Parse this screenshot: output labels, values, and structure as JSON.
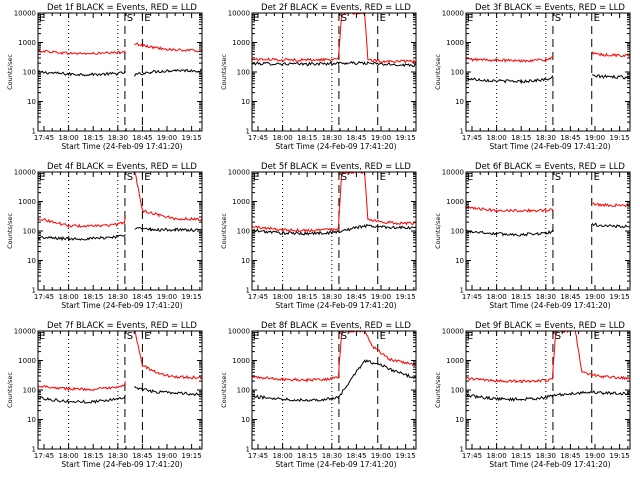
{
  "figure": {
    "start_time_label": "Start Time (24-Feb-09 17:41:20)",
    "y_axis_label": "Counts/sec",
    "x_tick_labels": [
      "17:45",
      "18:00",
      "18:15",
      "18:30",
      "18:45",
      "19:00",
      "19:15"
    ],
    "y_tick_labels": [
      "1",
      "10",
      "100",
      "1000",
      "10000"
    ]
  },
  "colors": {
    "events": "#000000",
    "lld": "#ff0000",
    "axis": "#000000",
    "background": "#ffffff"
  },
  "chart_data": [
    {
      "type": "line",
      "title": "Det 1f BLACK = Events, RED = LLD",
      "xlabel": "Start Time (24-Feb-09 17:41:20)",
      "ylabel": "Counts/sec",
      "x_unit": "UT time (HH:MM)",
      "xlim": [
        "17:41:20",
        "19:21:20"
      ],
      "ylim": [
        1,
        10000
      ],
      "y_scale": "log",
      "markers": [
        {
          "label": "S",
          "time": "18:34:20"
        },
        {
          "label": "E",
          "time": "18:45:00"
        }
      ],
      "dotted_lines": [
        "18:00",
        "18:30"
      ],
      "dashed_lines": [
        "18:34:20",
        "18:45:00"
      ],
      "gap": [
        "18:35:00",
        "18:40:30"
      ],
      "series": [
        {
          "name": "BLACK = Events",
          "color": "#000000",
          "x": [
            "17:41:20",
            "18:00",
            "18:15",
            "18:30",
            "18:34:00",
            "18:40:30",
            "18:50",
            "19:05",
            "19:21:20"
          ],
          "values": [
            100,
            85,
            82,
            88,
            95,
            80,
            100,
            115,
            110
          ]
        },
        {
          "name": "RED = LLD",
          "color": "#ff0000",
          "x": [
            "17:41:20",
            "18:00",
            "18:15",
            "18:30",
            "18:34:00",
            "18:40:30",
            "18:50",
            "19:05",
            "19:21:20"
          ],
          "values": [
            530,
            430,
            420,
            450,
            500,
            900,
            700,
            560,
            520
          ]
        }
      ]
    },
    {
      "type": "line",
      "title": "Det 2f BLACK = Events, RED = LLD",
      "xlabel": "Start Time (24-Feb-09 17:41:20)",
      "ylabel": "Counts/sec",
      "x_unit": "UT time (HH:MM)",
      "xlim": [
        "17:41:20",
        "19:21:20"
      ],
      "ylim": [
        1,
        10000
      ],
      "y_scale": "log",
      "markers": [
        {
          "label": "S",
          "time": "18:34:20"
        },
        {
          "label": "E",
          "time": "18:58:00"
        }
      ],
      "dotted_lines": [
        "18:00",
        "18:30"
      ],
      "dashed_lines": [
        "18:34:20",
        "18:58:00"
      ],
      "gap": [],
      "series": [
        {
          "name": "BLACK = Events",
          "color": "#000000",
          "x": [
            "17:41:20",
            "18:00",
            "18:15",
            "18:30",
            "18:34:00",
            "18:50",
            "19:05",
            "19:21:20"
          ],
          "values": [
            195,
            190,
            185,
            195,
            200,
            200,
            180,
            170
          ]
        },
        {
          "name": "RED = LLD",
          "color": "#ff0000",
          "x": [
            "17:41:20",
            "18:00",
            "18:15",
            "18:30",
            "18:34:00",
            "18:36",
            "18:50",
            "18:52",
            "19:05",
            "19:21:20"
          ],
          "values": [
            270,
            260,
            255,
            265,
            300,
            10000,
            10000,
            250,
            230,
            225
          ]
        }
      ]
    },
    {
      "type": "line",
      "title": "Det 3f BLACK = Events, RED = LLD",
      "xlabel": "Start Time (24-Feb-09 17:41:20)",
      "ylabel": "Counts/sec",
      "x_unit": "UT time (HH:MM)",
      "xlim": [
        "17:41:20",
        "19:21:20"
      ],
      "ylim": [
        1,
        10000
      ],
      "y_scale": "log",
      "markers": [
        {
          "label": "S",
          "time": "18:34:20"
        },
        {
          "label": "E",
          "time": "18:58:00"
        }
      ],
      "dotted_lines": [
        "18:00",
        "18:30"
      ],
      "dashed_lines": [
        "18:34:20",
        "18:58:00"
      ],
      "gap": [
        "18:35:00",
        "18:58:30"
      ],
      "series": [
        {
          "name": "BLACK = Events",
          "color": "#000000",
          "x": [
            "17:41:20",
            "18:00",
            "18:15",
            "18:30",
            "18:34:00",
            "18:58:30",
            "19:05",
            "19:21:20"
          ],
          "values": [
            60,
            50,
            48,
            55,
            65,
            75,
            70,
            65
          ]
        },
        {
          "name": "RED = LLD",
          "color": "#ff0000",
          "x": [
            "17:41:20",
            "18:00",
            "18:15",
            "18:30",
            "18:34:00",
            "18:58:30",
            "19:05",
            "19:21:20"
          ],
          "values": [
            270,
            250,
            240,
            260,
            300,
            420,
            380,
            360
          ]
        }
      ]
    },
    {
      "type": "line",
      "title": "Det 4f BLACK = Events, RED = LLD",
      "xlabel": "Start Time (24-Feb-09 17:41:20)",
      "ylabel": "Counts/sec",
      "x_unit": "UT time (HH:MM)",
      "xlim": [
        "17:41:20",
        "19:21:20"
      ],
      "ylim": [
        1,
        10000
      ],
      "y_scale": "log",
      "markers": [
        {
          "label": "S",
          "time": "18:34:20"
        },
        {
          "label": "E",
          "time": "18:45:00"
        }
      ],
      "dotted_lines": [
        "18:00",
        "18:30"
      ],
      "dashed_lines": [
        "18:34:20",
        "18:45:00"
      ],
      "gap": [
        "18:35:00",
        "18:40:30"
      ],
      "series": [
        {
          "name": "BLACK = Events",
          "color": "#000000",
          "x": [
            "17:41:20",
            "18:00",
            "18:15",
            "18:30",
            "18:34:00",
            "18:40:30",
            "18:50",
            "19:05",
            "19:21:20"
          ],
          "values": [
            60,
            55,
            55,
            65,
            75,
            130,
            110,
            110,
            105
          ]
        },
        {
          "name": "RED = LLD",
          "color": "#ff0000",
          "x": [
            "17:41:20",
            "18:00",
            "18:15",
            "18:30",
            "18:34:00",
            "18:40:30",
            "18:45",
            "18:55",
            "19:05",
            "19:21:20"
          ],
          "values": [
            270,
            150,
            145,
            165,
            200,
            10000,
            500,
            350,
            260,
            250
          ]
        }
      ]
    },
    {
      "type": "line",
      "title": "Det 5f BLACK = Events, RED = LLD",
      "xlabel": "Start Time (24-Feb-09 17:41:20)",
      "ylabel": "Counts/sec",
      "x_unit": "UT time (HH:MM)",
      "xlim": [
        "17:41:20",
        "19:21:20"
      ],
      "ylim": [
        1,
        10000
      ],
      "y_scale": "log",
      "markers": [
        {
          "label": "S",
          "time": "18:34:20"
        },
        {
          "label": "E",
          "time": "18:58:00"
        }
      ],
      "dotted_lines": [
        "18:00",
        "18:30"
      ],
      "dashed_lines": [
        "18:34:20",
        "18:58:00"
      ],
      "gap": [],
      "series": [
        {
          "name": "BLACK = Events",
          "color": "#000000",
          "x": [
            "17:41:20",
            "18:00",
            "18:15",
            "18:30",
            "18:34:00",
            "18:50",
            "19:05",
            "19:21:20"
          ],
          "values": [
            105,
            85,
            82,
            88,
            95,
            150,
            135,
            125
          ]
        },
        {
          "name": "RED = LLD",
          "color": "#ff0000",
          "x": [
            "17:41:20",
            "18:00",
            "18:15",
            "18:30",
            "18:34:00",
            "18:36",
            "18:50",
            "18:52",
            "19:05",
            "19:21:20"
          ],
          "values": [
            140,
            110,
            105,
            115,
            125,
            10000,
            10000,
            230,
            190,
            180
          ]
        }
      ]
    },
    {
      "type": "line",
      "title": "Det 6f BLACK = Events, RED = LLD",
      "xlabel": "Start Time (24-Feb-09 17:41:20)",
      "ylabel": "Counts/sec",
      "x_unit": "UT time (HH:MM)",
      "xlim": [
        "17:41:20",
        "19:21:20"
      ],
      "ylim": [
        1,
        10000
      ],
      "y_scale": "log",
      "markers": [
        {
          "label": "S",
          "time": "18:34:20"
        },
        {
          "label": "E",
          "time": "18:58:00"
        }
      ],
      "dotted_lines": [
        "18:00",
        "18:30"
      ],
      "dashed_lines": [
        "18:34:20",
        "18:58:00"
      ],
      "gap": [
        "18:35:00",
        "18:58:30"
      ],
      "series": [
        {
          "name": "BLACK = Events",
          "color": "#000000",
          "x": [
            "17:41:20",
            "18:00",
            "18:15",
            "18:30",
            "18:34:00",
            "18:58:30",
            "19:05",
            "19:21:20"
          ],
          "values": [
            100,
            80,
            75,
            85,
            95,
            170,
            150,
            140
          ]
        },
        {
          "name": "RED = LLD",
          "color": "#ff0000",
          "x": [
            "17:41:20",
            "18:00",
            "18:15",
            "18:30",
            "18:34:00",
            "18:58:30",
            "19:05",
            "19:21:20"
          ],
          "values": [
            610,
            500,
            490,
            500,
            520,
            850,
            760,
            720
          ]
        }
      ]
    },
    {
      "type": "line",
      "title": "Det 7f BLACK = Events, RED = LLD",
      "xlabel": "Start Time (24-Feb-09 17:41:20)",
      "ylabel": "Counts/sec",
      "x_unit": "UT time (HH:MM)",
      "xlim": [
        "17:41:20",
        "19:21:20"
      ],
      "ylim": [
        1,
        10000
      ],
      "y_scale": "log",
      "markers": [
        {
          "label": "S",
          "time": "18:34:20"
        },
        {
          "label": "E",
          "time": "18:45:00"
        }
      ],
      "dotted_lines": [
        "18:00",
        "18:30"
      ],
      "dashed_lines": [
        "18:34:20",
        "18:45:00"
      ],
      "gap": [
        "18:35:00",
        "18:40:30"
      ],
      "series": [
        {
          "name": "BLACK = Events",
          "color": "#000000",
          "x": [
            "17:41:20",
            "18:00",
            "18:15",
            "18:30",
            "18:34:00",
            "18:40:30",
            "18:50",
            "19:05",
            "19:21:20"
          ],
          "values": [
            55,
            40,
            40,
            50,
            60,
            120,
            90,
            80,
            70
          ]
        },
        {
          "name": "RED = LLD",
          "color": "#ff0000",
          "x": [
            "17:41:20",
            "18:00",
            "18:15",
            "18:30",
            "18:34:00",
            "18:40:30",
            "18:45",
            "18:55",
            "19:05",
            "19:21:20"
          ],
          "values": [
            140,
            110,
            105,
            120,
            140,
            10000,
            700,
            350,
            280,
            260
          ]
        }
      ]
    },
    {
      "type": "line",
      "title": "Det 8f BLACK = Events, RED = LLD",
      "xlabel": "Start Time (24-Feb-09 17:41:20)",
      "ylabel": "Counts/sec",
      "x_unit": "UT time (HH:MM)",
      "xlim": [
        "17:41:20",
        "19:21:20"
      ],
      "ylim": [
        1,
        10000
      ],
      "y_scale": "log",
      "markers": [
        {
          "label": "S",
          "time": "18:34:20"
        },
        {
          "label": "E",
          "time": "18:58:00"
        }
      ],
      "dotted_lines": [
        "18:00",
        "18:30"
      ],
      "dashed_lines": [
        "18:34:20",
        "18:58:00"
      ],
      "gap": [],
      "series": [
        {
          "name": "BLACK = Events",
          "color": "#000000",
          "x": [
            "17:41:20",
            "18:00",
            "18:15",
            "18:30",
            "18:34:00",
            "18:50",
            "19:00",
            "19:10",
            "19:21:20"
          ],
          "values": [
            60,
            50,
            45,
            50,
            55,
            1000,
            700,
            400,
            250
          ]
        },
        {
          "name": "RED = LLD",
          "color": "#ff0000",
          "x": [
            "17:41:20",
            "18:00",
            "18:15",
            "18:30",
            "18:34:00",
            "18:36",
            "18:50",
            "18:55",
            "19:05",
            "19:21:20"
          ],
          "values": [
            280,
            230,
            220,
            240,
            280,
            10000,
            10000,
            3000,
            1100,
            700
          ]
        }
      ]
    },
    {
      "type": "line",
      "title": "Det 9f BLACK = Events, RED = LLD",
      "xlabel": "Start Time (24-Feb-09 17:41:20)",
      "ylabel": "Counts/sec",
      "x_unit": "UT time (HH:MM)",
      "xlim": [
        "17:41:20",
        "19:21:20"
      ],
      "ylim": [
        1,
        10000
      ],
      "y_scale": "log",
      "markers": [
        {
          "label": "S",
          "time": "18:34:20"
        },
        {
          "label": "E",
          "time": "18:58:00"
        }
      ],
      "dotted_lines": [
        "18:00",
        "18:30"
      ],
      "dashed_lines": [
        "18:34:20",
        "18:58:00"
      ],
      "gap": [],
      "series": [
        {
          "name": "BLACK = Events",
          "color": "#000000",
          "x": [
            "17:41:20",
            "18:00",
            "18:15",
            "18:30",
            "18:34:00",
            "18:50",
            "18:58",
            "19:05",
            "19:21:20"
          ],
          "values": [
            65,
            50,
            48,
            55,
            65,
            80,
            85,
            80,
            75
          ]
        },
        {
          "name": "RED = LLD",
          "color": "#ff0000",
          "x": [
            "17:41:20",
            "18:00",
            "18:15",
            "18:30",
            "18:34:00",
            "18:36",
            "18:48",
            "18:52",
            "19:05",
            "19:21:20"
          ],
          "values": [
            250,
            200,
            195,
            210,
            230,
            10000,
            10000,
            400,
            280,
            250
          ]
        }
      ]
    }
  ]
}
